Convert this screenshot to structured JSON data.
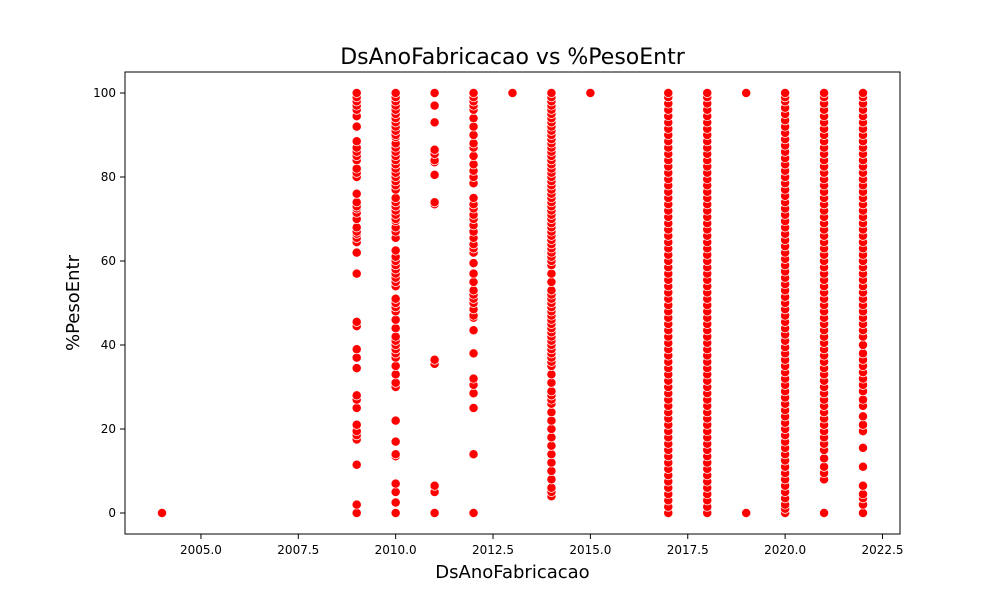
{
  "chart_data": {
    "type": "scatter",
    "title": "DsAnoFabricacao vs %PesoEntr",
    "xlabel": "DsAnoFabricacao",
    "ylabel": "%PesoEntr",
    "xlim": [
      2003.05,
      2022.95
    ],
    "ylim": [
      -5,
      105
    ],
    "xticks": [
      2005.0,
      2007.5,
      2010.0,
      2012.5,
      2015.0,
      2017.5,
      2020.0,
      2022.5
    ],
    "xtick_labels": [
      "2005.0",
      "2007.5",
      "2010.0",
      "2012.5",
      "2015.0",
      "2017.5",
      "2020.0",
      "2022.5"
    ],
    "yticks": [
      0,
      20,
      40,
      60,
      80,
      100
    ],
    "ytick_labels": [
      "0",
      "20",
      "40",
      "60",
      "80",
      "100"
    ],
    "grid": false,
    "point_color": "#ff0000",
    "point_edge_color": "#ffffff",
    "series": [
      {
        "points": [
          {
            "x": 2004,
            "ys": [
              0
            ]
          },
          {
            "x": 2009,
            "ys": [
              0,
              2,
              11.5,
              17.5,
              18.5,
              19.5,
              21,
              25,
              27,
              28,
              34.5,
              37,
              39,
              44.5,
              45.5,
              57,
              62,
              64.5,
              65.5,
              66.5,
              67,
              68,
              70,
              71.5,
              72.5,
              73,
              74,
              76,
              80,
              81,
              82,
              84,
              85,
              86,
              87,
              88.5,
              92,
              94.5,
              96,
              97,
              98,
              99,
              100
            ]
          },
          {
            "x": 2010,
            "ys": [
              0,
              2.5,
              5,
              7,
              13.5,
              14,
              17,
              22,
              30,
              31,
              33,
              35,
              37,
              38,
              39,
              40,
              41,
              42,
              44,
              46,
              48,
              49,
              50,
              51,
              54,
              55,
              56,
              57,
              58,
              59,
              60,
              61,
              62.5,
              65.5,
              67,
              68,
              69.5,
              70,
              71,
              72,
              73,
              74,
              75,
              77,
              78,
              79,
              80,
              81,
              82,
              83,
              84,
              85,
              86,
              87,
              88,
              89.5,
              90,
              91,
              92,
              93,
              94,
              95,
              96,
              97,
              98,
              99,
              100
            ]
          },
          {
            "x": 2011,
            "ys": [
              0,
              5,
              6.5,
              35.5,
              36.5,
              73.5,
              74,
              80.5,
              83.5,
              84,
              85.5,
              86.5,
              93,
              97,
              100
            ]
          },
          {
            "x": 2012,
            "ys": [
              0,
              14,
              25,
              28.5,
              30.5,
              32,
              38,
              43.5,
              46.5,
              47,
              48.5,
              50,
              51,
              52,
              53,
              55,
              57,
              59.5,
              62,
              63,
              64,
              65.5,
              67,
              68.5,
              70,
              71,
              72.5,
              73.5,
              75,
              78.5,
              80,
              81.5,
              83,
              85,
              87,
              88,
              90,
              92,
              94,
              96,
              97,
              98,
              99,
              100
            ]
          },
          {
            "x": 2013,
            "ys": [
              100
            ]
          },
          {
            "x": 2014,
            "ys": [
              4,
              5,
              6,
              8,
              10,
              12,
              14,
              16,
              18,
              20,
              22,
              24,
              26,
              27,
              28,
              29,
              31,
              33,
              35,
              36,
              37,
              38,
              39,
              40,
              41,
              42,
              43,
              44,
              45,
              46,
              47,
              48,
              49,
              50,
              51,
              52,
              53,
              55,
              57,
              59,
              60,
              61,
              62,
              63,
              64,
              65,
              66,
              67,
              68,
              69,
              70,
              71,
              72,
              73,
              74,
              75,
              76,
              77,
              78,
              79,
              80,
              81,
              82,
              83,
              84,
              85,
              86,
              87,
              88,
              89,
              90,
              91,
              92,
              93,
              94,
              95,
              96,
              97,
              98,
              99,
              100
            ]
          },
          {
            "x": 2015,
            "ys": [
              100
            ]
          },
          {
            "x": 2017,
            "ys": [
              0,
              1.5,
              3,
              4.5,
              6,
              7.5,
              9,
              10.5,
              12,
              13.5,
              15,
              16.5,
              18,
              19.5,
              21,
              22.5,
              24,
              25.5,
              27,
              28.5,
              30,
              31.5,
              33,
              34.5,
              36,
              37.5,
              39,
              40.5,
              42,
              43.5,
              45,
              46.5,
              48,
              49.5,
              51,
              52.5,
              54,
              55.5,
              57,
              58.5,
              60,
              61.5,
              63,
              64.5,
              66,
              67.5,
              69,
              70.5,
              72,
              73.5,
              75,
              76.5,
              78,
              79.5,
              81,
              82.5,
              84,
              85.5,
              87,
              88.5,
              90,
              91.5,
              93,
              94.5,
              96,
              97.5,
              99,
              100
            ]
          },
          {
            "x": 2018,
            "ys": [
              0,
              1.5,
              3,
              4.5,
              6,
              7.5,
              9,
              10.5,
              12,
              13.5,
              15,
              16.5,
              18,
              19.5,
              21,
              22.5,
              24,
              25.5,
              27,
              28.5,
              30,
              31.5,
              33,
              34.5,
              36,
              37.5,
              39,
              40.5,
              42,
              43.5,
              45,
              46.5,
              48,
              49.5,
              51,
              52.5,
              54,
              55.5,
              57,
              58.5,
              60,
              61.5,
              63,
              64.5,
              66,
              67.5,
              69,
              70.5,
              72,
              73.5,
              75,
              76.5,
              78,
              79.5,
              81,
              82.5,
              84,
              85.5,
              87,
              88.5,
              90,
              91.5,
              93,
              94.5,
              96,
              97.5,
              99,
              100
            ]
          },
          {
            "x": 2019,
            "ys": [
              0,
              100
            ]
          },
          {
            "x": 2020,
            "ys": [
              0,
              1,
              2,
              3.5,
              5,
              6.5,
              8,
              9.5,
              11,
              12.5,
              14,
              15.5,
              17,
              18.5,
              20,
              21.5,
              23,
              24.5,
              26,
              27.5,
              29,
              30.5,
              32,
              33.5,
              35,
              36.5,
              38,
              39.5,
              41,
              42.5,
              44,
              45.5,
              47,
              48.5,
              50,
              51.5,
              53,
              54.5,
              56,
              57.5,
              59,
              60.5,
              62,
              63.5,
              65,
              66.5,
              68,
              69.5,
              71,
              72.5,
              74,
              75.5,
              77,
              78.5,
              80,
              81.5,
              83,
              84.5,
              86,
              87.5,
              89,
              90.5,
              92,
              93.5,
              95,
              96.5,
              98,
              99,
              100
            ]
          },
          {
            "x": 2021,
            "ys": [
              0,
              8,
              9.5,
              11,
              13,
              15,
              16.5,
              18,
              19.5,
              21,
              22.5,
              24,
              25.5,
              27,
              28.5,
              30,
              31.5,
              33,
              34.5,
              36,
              37.5,
              39,
              40.5,
              42,
              43.5,
              45,
              46.5,
              48,
              49.5,
              51,
              52.5,
              54,
              55.5,
              57,
              58.5,
              60,
              61.5,
              63,
              64.5,
              66,
              67.5,
              69,
              70.5,
              72,
              73.5,
              75,
              76.5,
              78,
              79.5,
              81,
              82.5,
              84,
              85.5,
              87,
              88.5,
              90,
              91.5,
              93,
              94.5,
              96,
              97.5,
              99,
              100
            ]
          },
          {
            "x": 2022,
            "ys": [
              0,
              2,
              3.5,
              4.5,
              6.5,
              11,
              15.5,
              19.5,
              21,
              23,
              25.5,
              27,
              29,
              30.5,
              32,
              33.5,
              35,
              36.5,
              38,
              40,
              42,
              43.5,
              45,
              46.5,
              48,
              49.5,
              51,
              52.5,
              54,
              55.5,
              57,
              58.5,
              60,
              61.5,
              63,
              64.5,
              66,
              67.5,
              69,
              70.5,
              72,
              73.5,
              75,
              76.5,
              78,
              79.5,
              81,
              82.5,
              84,
              85.5,
              87,
              88.5,
              90,
              91.5,
              93,
              94.5,
              96,
              97.5,
              99,
              100
            ]
          }
        ]
      }
    ]
  }
}
